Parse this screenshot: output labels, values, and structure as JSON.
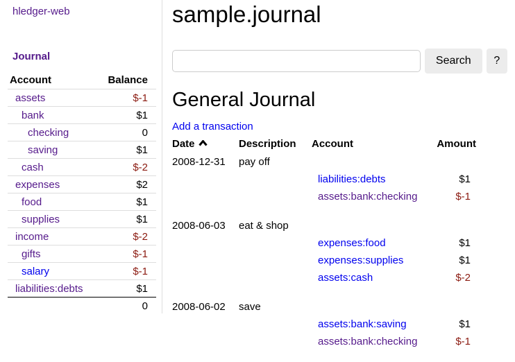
{
  "app": {
    "brand": "hledger-web"
  },
  "colors": {
    "link_blue": "#0000EE",
    "link_visited": "#551A8B",
    "negative_amount": "#8b1a10",
    "row_border": "#dddddd",
    "total_border": "#000000",
    "button_bg": "#ececec"
  },
  "sidebar": {
    "journal_label": "Journal",
    "accounts_table": {
      "headers": {
        "account": "Account",
        "balance": "Balance"
      },
      "rows": [
        {
          "account": "assets",
          "indent": 0,
          "balance": "$-1",
          "negative": true,
          "visited": true
        },
        {
          "account": "bank",
          "indent": 1,
          "balance": "$1",
          "negative": false,
          "visited": true
        },
        {
          "account": "checking",
          "indent": 2,
          "balance": "0",
          "negative": false,
          "visited": true
        },
        {
          "account": "saving",
          "indent": 2,
          "balance": "$1",
          "negative": false,
          "visited": true
        },
        {
          "account": "cash",
          "indent": 1,
          "balance": "$-2",
          "negative": true,
          "visited": true
        },
        {
          "account": "expenses",
          "indent": 0,
          "balance": "$2",
          "negative": false,
          "visited": true
        },
        {
          "account": "food",
          "indent": 1,
          "balance": "$1",
          "negative": false,
          "visited": true
        },
        {
          "account": "supplies",
          "indent": 1,
          "balance": "$1",
          "negative": false,
          "visited": true
        },
        {
          "account": "income",
          "indent": 0,
          "balance": "$-2",
          "negative": true,
          "visited": true
        },
        {
          "account": "gifts",
          "indent": 1,
          "balance": "$-1",
          "negative": true,
          "visited": true
        },
        {
          "account": "salary",
          "indent": 1,
          "balance": "$-1",
          "negative": true,
          "visited": false
        },
        {
          "account": "liabilities:debts",
          "indent": 0,
          "balance": "$1",
          "negative": false,
          "visited": true
        }
      ],
      "total": "0"
    }
  },
  "main": {
    "title": "sample.journal",
    "search": {
      "value": "",
      "placeholder": "",
      "button_label": "Search",
      "help_label": "?"
    },
    "journal": {
      "heading": "General Journal",
      "add_link": "Add a transaction",
      "headers": {
        "date": "Date",
        "description": "Description",
        "account": "Account",
        "amount": "Amount"
      },
      "sort": {
        "column": "date",
        "direction": "ascending",
        "icon": "caret-up-icon"
      },
      "transactions": [
        {
          "date": "2008-12-31",
          "description": "pay off",
          "postings": [
            {
              "account": "liabilities:debts",
              "amount": "$1",
              "negative": false,
              "visited": false
            },
            {
              "account": "assets:bank:checking",
              "amount": "$-1",
              "negative": true,
              "visited": true
            }
          ]
        },
        {
          "date": "2008-06-03",
          "description": "eat & shop",
          "postings": [
            {
              "account": "expenses:food",
              "amount": "$1",
              "negative": false,
              "visited": false
            },
            {
              "account": "expenses:supplies",
              "amount": "$1",
              "negative": false,
              "visited": false
            },
            {
              "account": "assets:cash",
              "amount": "$-2",
              "negative": true,
              "visited": false
            }
          ]
        },
        {
          "date": "2008-06-02",
          "description": "save",
          "postings": [
            {
              "account": "assets:bank:saving",
              "amount": "$1",
              "negative": false,
              "visited": false
            },
            {
              "account": "assets:bank:checking",
              "amount": "$-1",
              "negative": true,
              "visited": true
            }
          ]
        }
      ]
    }
  }
}
